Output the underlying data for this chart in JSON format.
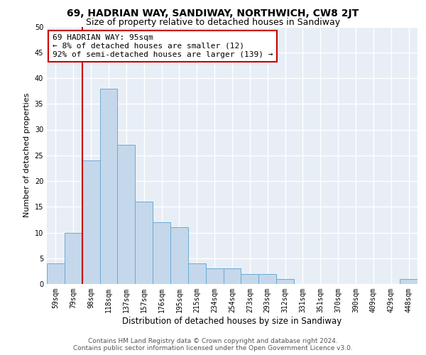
{
  "title": "69, HADRIAN WAY, SANDIWAY, NORTHWICH, CW8 2JT",
  "subtitle": "Size of property relative to detached houses in Sandiway",
  "xlabel": "Distribution of detached houses by size in Sandiway",
  "ylabel": "Number of detached properties",
  "categories": [
    "59sqm",
    "79sqm",
    "98sqm",
    "118sqm",
    "137sqm",
    "157sqm",
    "176sqm",
    "195sqm",
    "215sqm",
    "234sqm",
    "254sqm",
    "273sqm",
    "293sqm",
    "312sqm",
    "331sqm",
    "351sqm",
    "370sqm",
    "390sqm",
    "409sqm",
    "429sqm",
    "448sqm"
  ],
  "values": [
    4,
    10,
    24,
    38,
    27,
    16,
    12,
    11,
    4,
    3,
    3,
    2,
    2,
    1,
    0,
    0,
    0,
    0,
    0,
    0,
    1
  ],
  "bar_color": "#c5d8eb",
  "bar_edge_color": "#6aaad4",
  "bar_edge_width": 0.7,
  "background_color": "#e8eef6",
  "grid_color": "#ffffff",
  "vline_color": "#cc0000",
  "annotation_text": "69 HADRIAN WAY: 95sqm\n← 8% of detached houses are smaller (12)\n92% of semi-detached houses are larger (139) →",
  "annotation_box_color": "#cc0000",
  "ylim": [
    0,
    50
  ],
  "yticks": [
    0,
    5,
    10,
    15,
    20,
    25,
    30,
    35,
    40,
    45,
    50
  ],
  "footer_line1": "Contains HM Land Registry data © Crown copyright and database right 2024.",
  "footer_line2": "Contains public sector information licensed under the Open Government Licence v3.0.",
  "title_fontsize": 10,
  "subtitle_fontsize": 9,
  "xlabel_fontsize": 8.5,
  "ylabel_fontsize": 8,
  "tick_fontsize": 7,
  "annotation_fontsize": 8,
  "footer_fontsize": 6.5
}
